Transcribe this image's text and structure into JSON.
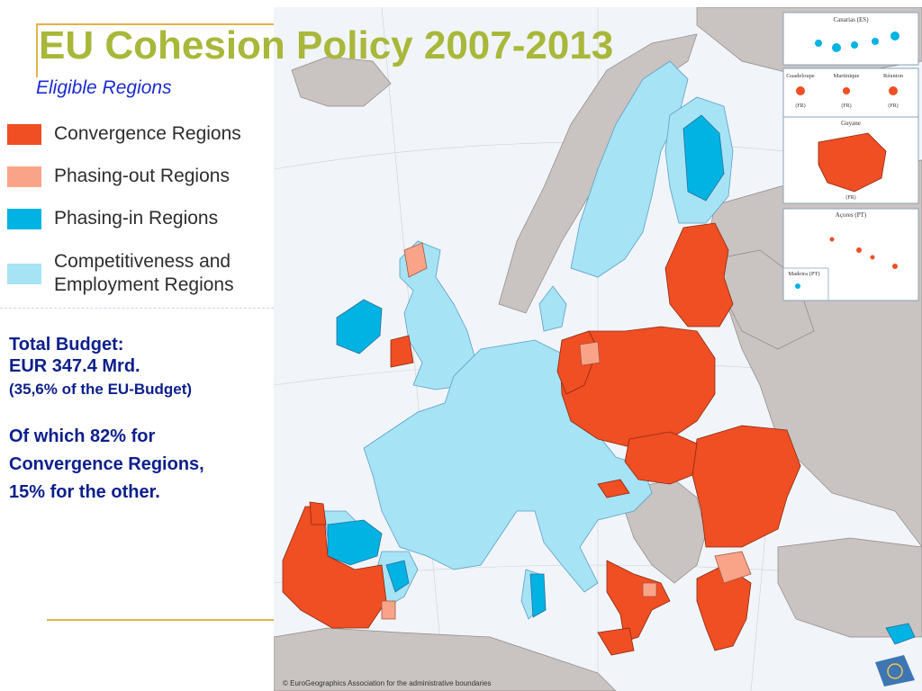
{
  "title": "EU Cohesion Policy 2007-2013",
  "subtitle": "Eligible Regions",
  "legend": [
    {
      "label": "Convergence Regions",
      "color": "#f04e23"
    },
    {
      "label": "Phasing-out Regions",
      "color": "#f9a489"
    },
    {
      "label": "Phasing-in Regions",
      "color": "#00b3e3"
    },
    {
      "label": "Competitiveness and Employment Regions",
      "label_line1": "Competitiveness and",
      "label_line2": "Employment Regions",
      "color": "#a6e3f5"
    }
  ],
  "budget": {
    "line1": "Total Budget:",
    "line2": "EUR 347.4 Mrd.",
    "line3": "(35,6% of the EU-Budget)",
    "line4": "Of which 82% for",
    "line5": "Convergence Regions,",
    "line6": "15% for the other."
  },
  "insets": {
    "canarias": "Canarias (ES)",
    "guadeloupe": "Guadeloupe",
    "martinique": "Martinique",
    "reunion": "Réunion",
    "fr": "(FR)",
    "guyane": "Guyane",
    "acores": "Açores (PT)",
    "madeira": "Madeira (PT)"
  },
  "credit": "© EuroGeographics Association for the administrative boundaries",
  "colors": {
    "sea": "#f1f5f9",
    "non_eu": "#c9c3c1",
    "title": "#a9b73a",
    "subtitle": "#1c2bd1",
    "budget_text": "#0d1f8c"
  }
}
